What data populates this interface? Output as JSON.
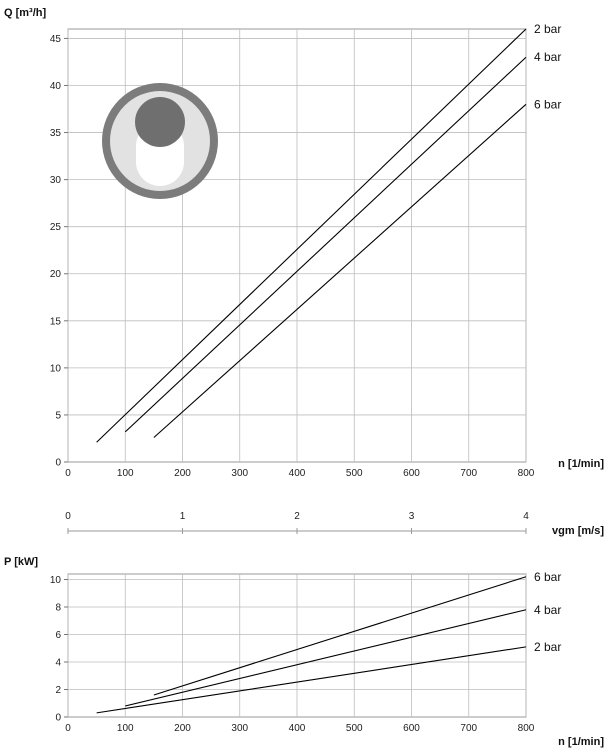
{
  "chart_data": [
    {
      "type": "line",
      "ylabel": "Q [m³/h]",
      "xlabel": "n [1/min]",
      "xlim": [
        0,
        800
      ],
      "ylim": [
        0,
        46
      ],
      "x_ticks": [
        0,
        100,
        200,
        300,
        400,
        500,
        600,
        700,
        800
      ],
      "y_ticks": [
        0,
        5,
        10,
        15,
        20,
        25,
        30,
        35,
        40,
        45
      ],
      "grid": true,
      "series": [
        {
          "name": "2 bar",
          "x": [
            50,
            800
          ],
          "y": [
            2.1,
            46
          ]
        },
        {
          "name": "4 bar",
          "x": [
            100,
            800
          ],
          "y": [
            3.2,
            43
          ]
        },
        {
          "name": "6 bar",
          "x": [
            150,
            800
          ],
          "y": [
            2.6,
            38
          ]
        }
      ]
    },
    {
      "type": "axis",
      "xlabel": "vgm [m/s]",
      "ticks": [
        0,
        1,
        2,
        3,
        4
      ]
    },
    {
      "type": "line",
      "ylabel": "P [kW]",
      "xlabel": "n [1/min]",
      "xlim": [
        0,
        800
      ],
      "ylim": [
        0,
        10.4
      ],
      "x_ticks": [
        0,
        100,
        200,
        300,
        400,
        500,
        600,
        700,
        800
      ],
      "y_ticks": [
        0,
        2,
        4,
        6,
        8,
        10
      ],
      "grid": true,
      "series": [
        {
          "name": "6 bar",
          "x": [
            150,
            800
          ],
          "y": [
            1.6,
            10.2
          ]
        },
        {
          "name": "4 bar",
          "x": [
            100,
            800
          ],
          "y": [
            0.8,
            7.8
          ]
        },
        {
          "name": "2 bar",
          "x": [
            50,
            800
          ],
          "y": [
            0.3,
            5.1
          ]
        }
      ]
    }
  ],
  "colors": {
    "line": "#000000",
    "grid": "#bdbdbd",
    "icon_ring": "#7c7c7c",
    "icon_rotor": "#6f6f6f"
  },
  "icon": "pump-rotor-icon"
}
